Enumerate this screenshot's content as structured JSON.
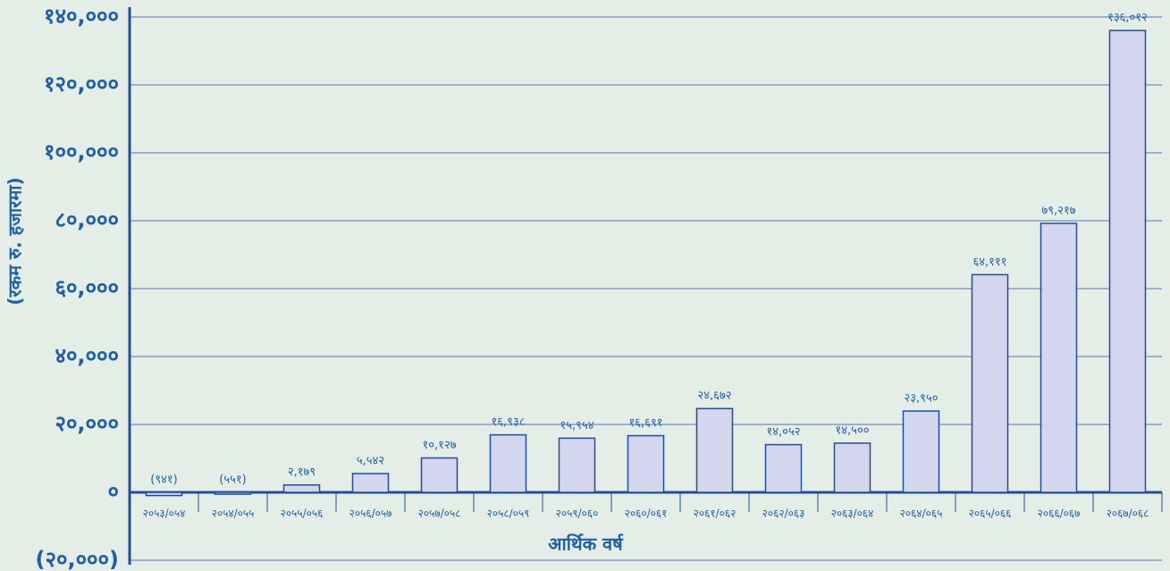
{
  "chart_data": {
    "type": "bar",
    "y_label": "(रकम रु. हजारमा)",
    "x_label": "आर्थिक वर्ष",
    "categories": [
      "२०५३/०५४",
      "२०५४/०५५",
      "२०५५/०५६",
      "२०५६/०५७",
      "२०५७/०५८",
      "२०५८/०५९",
      "२०५९/०६०",
      "२०६०/०६१",
      "२०६१/०६२",
      "२०६२/०६३",
      "२०६३/०६४",
      "२०६४/०६५",
      "२०६५/०६६",
      "२०६६/०६७",
      "२०६७/०६८"
    ],
    "values": [
      -941,
      -551,
      2179,
      5542,
      10127,
      16938,
      15954,
      16691,
      24672,
      14052,
      14500,
      23950,
      64111,
      79217,
      136012
    ],
    "value_labels": [
      "(९४१)",
      "(५५१)",
      "२,१७९",
      "५,५४२",
      "१०,१२७",
      "१६,९३८",
      "१५,९५४",
      "१६,६९१",
      "२४,६७२",
      "१४,०५२",
      "१४,५००",
      "२३,९५०",
      "६४,१११",
      "७९,२१७",
      "१३६,०१२"
    ],
    "color": "#d4d6ee",
    "ylim": [
      -20000,
      140000
    ],
    "yticks": [
      {
        "value": -20000,
        "label": "(२०,०००)"
      },
      {
        "value": 0,
        "label": "०"
      },
      {
        "value": 20000,
        "label": "२०,०००"
      },
      {
        "value": 40000,
        "label": "४०,०००"
      },
      {
        "value": 60000,
        "label": "६०,०००"
      },
      {
        "value": 80000,
        "label": "८०,०००"
      },
      {
        "value": 100000,
        "label": "१००,०००"
      },
      {
        "value": 120000,
        "label": "१२०,०००"
      },
      {
        "value": 140000,
        "label": "१४०,०००"
      }
    ],
    "grid": true
  }
}
